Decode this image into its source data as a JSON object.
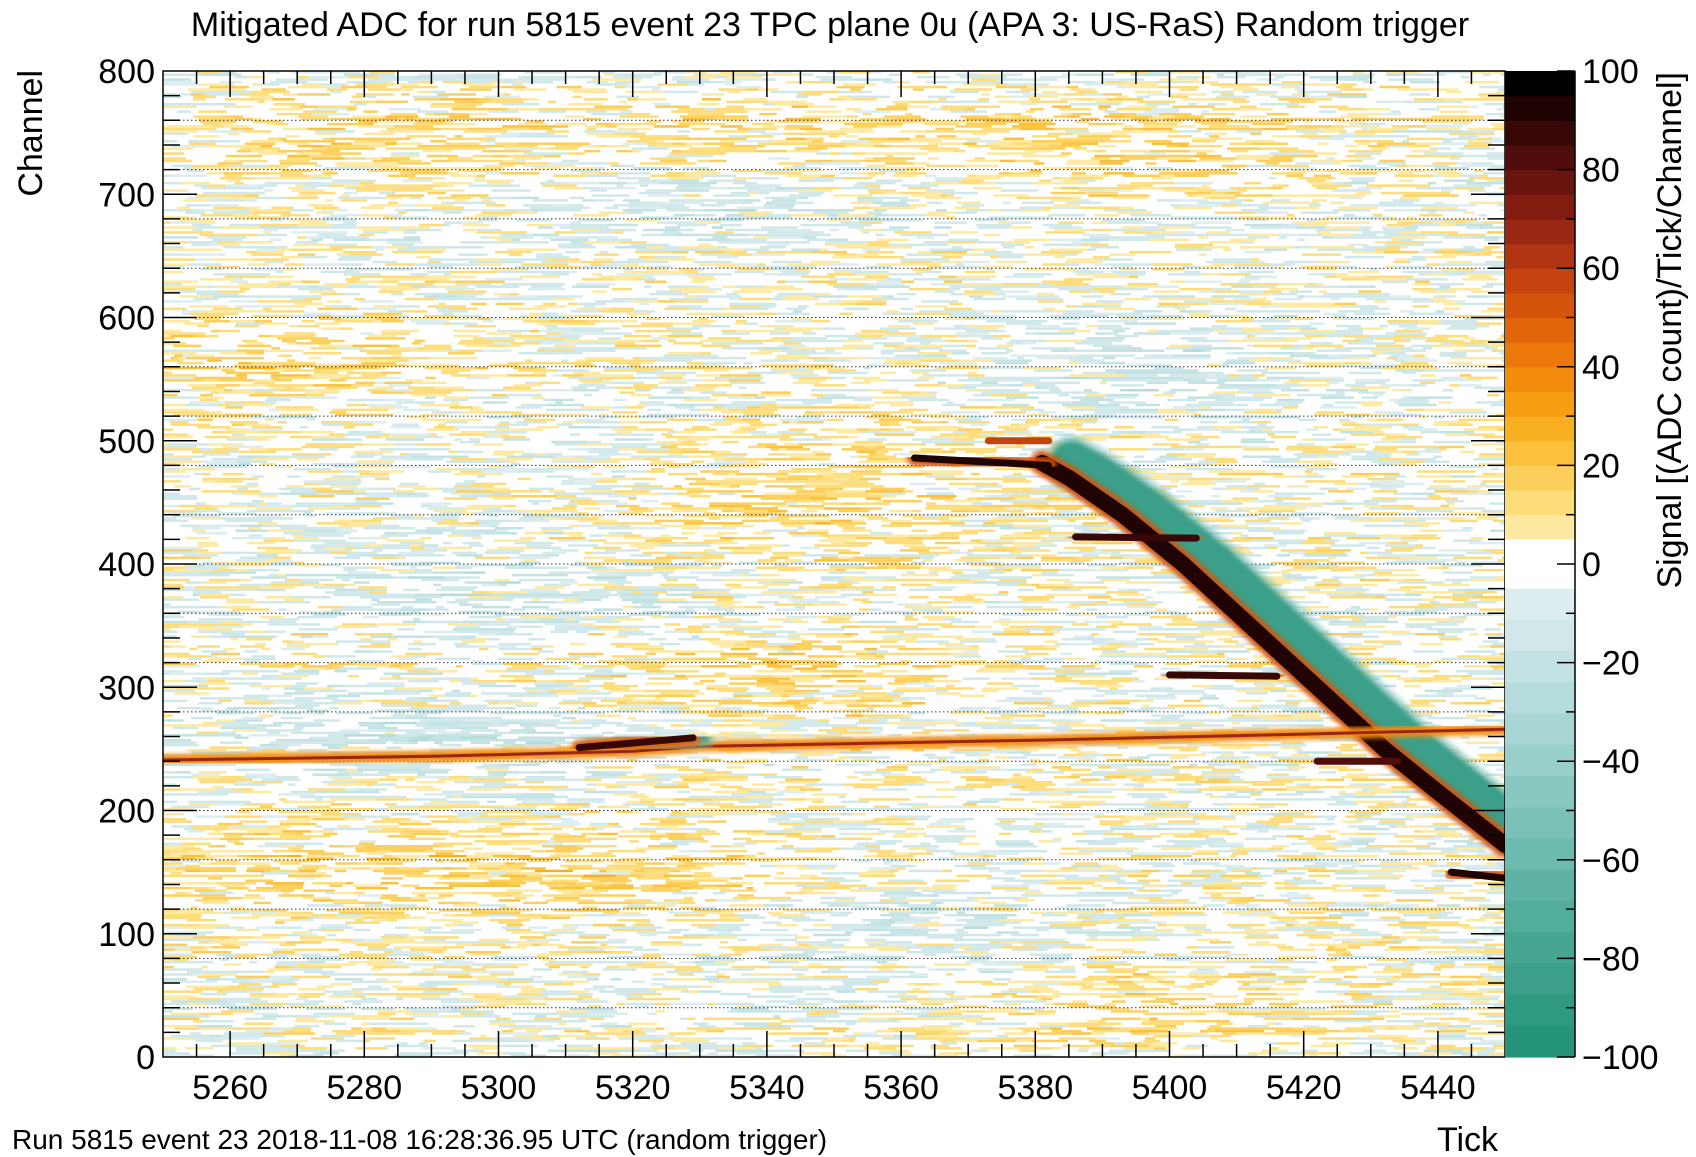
{
  "chart_data": {
    "type": "heatmap",
    "title": "Mitigated ADC for run 5815 event 23 TPC plane 0u (APA 3: US-RaS) Random trigger",
    "xlabel": "Tick",
    "ylabel": "Channel",
    "zlabel": "Signal [(ADC count)/Tick/Channel]",
    "xlim": [
      5250,
      5450
    ],
    "ylim": [
      0,
      800
    ],
    "zlim": [
      -100,
      100
    ],
    "x_ticks": [
      5260,
      5280,
      5300,
      5320,
      5340,
      5360,
      5380,
      5400,
      5420,
      5440
    ],
    "y_ticks": [
      0,
      100,
      200,
      300,
      400,
      500,
      600,
      700,
      800
    ],
    "z_ticks": [
      100,
      80,
      60,
      40,
      20,
      0,
      -20,
      -40,
      -60,
      -80,
      -100
    ],
    "y_tick_labels": [
      "0",
      "100",
      "200",
      "300",
      "400",
      "500",
      "600",
      "700",
      "800"
    ],
    "x_tick_labels": [
      "5260",
      "5280",
      "5300",
      "5320",
      "5340",
      "5360",
      "5380",
      "5400",
      "5420",
      "5440"
    ],
    "z_tick_labels": [
      "100",
      "80",
      "60",
      "40",
      "20",
      "0",
      "−20",
      "−40",
      "−60",
      "−80",
      "−100"
    ],
    "grid_lines_channel": [
      40,
      80,
      120,
      160,
      200,
      240,
      280,
      320,
      360,
      400,
      440,
      480,
      520,
      560,
      600,
      640,
      680,
      720,
      760
    ],
    "palette": {
      "positive": [
        "#fde9a0",
        "#fddc7a",
        "#fccf5a",
        "#fbc13c",
        "#f9b020",
        "#f79e10",
        "#f38b0c",
        "#ec780a",
        "#e3650a",
        "#d5540c",
        "#c4430f",
        "#b03411",
        "#9a2712",
        "#821c11",
        "#6a140f",
        "#510d0b",
        "#380807",
        "#1f0403",
        "#000000"
      ],
      "negative": [
        "#dcedf0",
        "#d0e8ea",
        "#c3e2e3",
        "#b5dcdc",
        "#a7d6d4",
        "#98cfcb",
        "#89c8c1",
        "#7bc1b8",
        "#6dbaae",
        "#5fb3a5",
        "#52ad9b",
        "#46a692",
        "#3b9f89",
        "#309a80",
        "#269478"
      ]
    },
    "features": [
      {
        "name": "steep track",
        "kind": "line",
        "points": [
          [
            5381,
            482
          ],
          [
            5385,
            470
          ],
          [
            5393,
            440
          ],
          [
            5402,
            400
          ],
          [
            5410,
            360
          ],
          [
            5418,
            320
          ],
          [
            5426,
            280
          ],
          [
            5432,
            250
          ],
          [
            5440,
            215
          ],
          [
            5447,
            185
          ],
          [
            5450,
            172
          ]
        ],
        "value": 95,
        "negative_lobe": true
      },
      {
        "name": "near-horizontal track",
        "kind": "line",
        "points": [
          [
            5250,
            241
          ],
          [
            5290,
            244
          ],
          [
            5320,
            248
          ],
          [
            5330,
            252
          ],
          [
            5380,
            257
          ],
          [
            5420,
            262
          ],
          [
            5450,
            266
          ]
        ],
        "value": 70
      },
      {
        "name": "track fragment",
        "kind": "line",
        "points": [
          [
            5362,
            486
          ],
          [
            5382,
            480
          ]
        ],
        "value": 95
      },
      {
        "name": "track fragment",
        "kind": "line",
        "points": [
          [
            5312,
            251
          ],
          [
            5329,
            259
          ]
        ],
        "value": 90,
        "negative_lobe": true
      },
      {
        "name": "track fragment",
        "kind": "line",
        "points": [
          [
            5373,
            500
          ],
          [
            5382,
            500
          ]
        ],
        "value": 60,
        "negative_lobe": true
      },
      {
        "name": "track fragment",
        "kind": "line",
        "points": [
          [
            5386,
            422
          ],
          [
            5404,
            421
          ]
        ],
        "value": 90
      },
      {
        "name": "track fragment",
        "kind": "line",
        "points": [
          [
            5400,
            310
          ],
          [
            5416,
            309
          ]
        ],
        "value": 90
      },
      {
        "name": "track fragment",
        "kind": "line",
        "points": [
          [
            5422,
            240
          ],
          [
            5434,
            240
          ]
        ],
        "value": 85
      },
      {
        "name": "track fragment",
        "kind": "line",
        "points": [
          [
            5442,
            150
          ],
          [
            5450,
            145
          ]
        ],
        "value": 95
      }
    ]
  },
  "footer": "Run 5815 event 23 2018-11-08 16:28:36.95 UTC (random trigger)"
}
